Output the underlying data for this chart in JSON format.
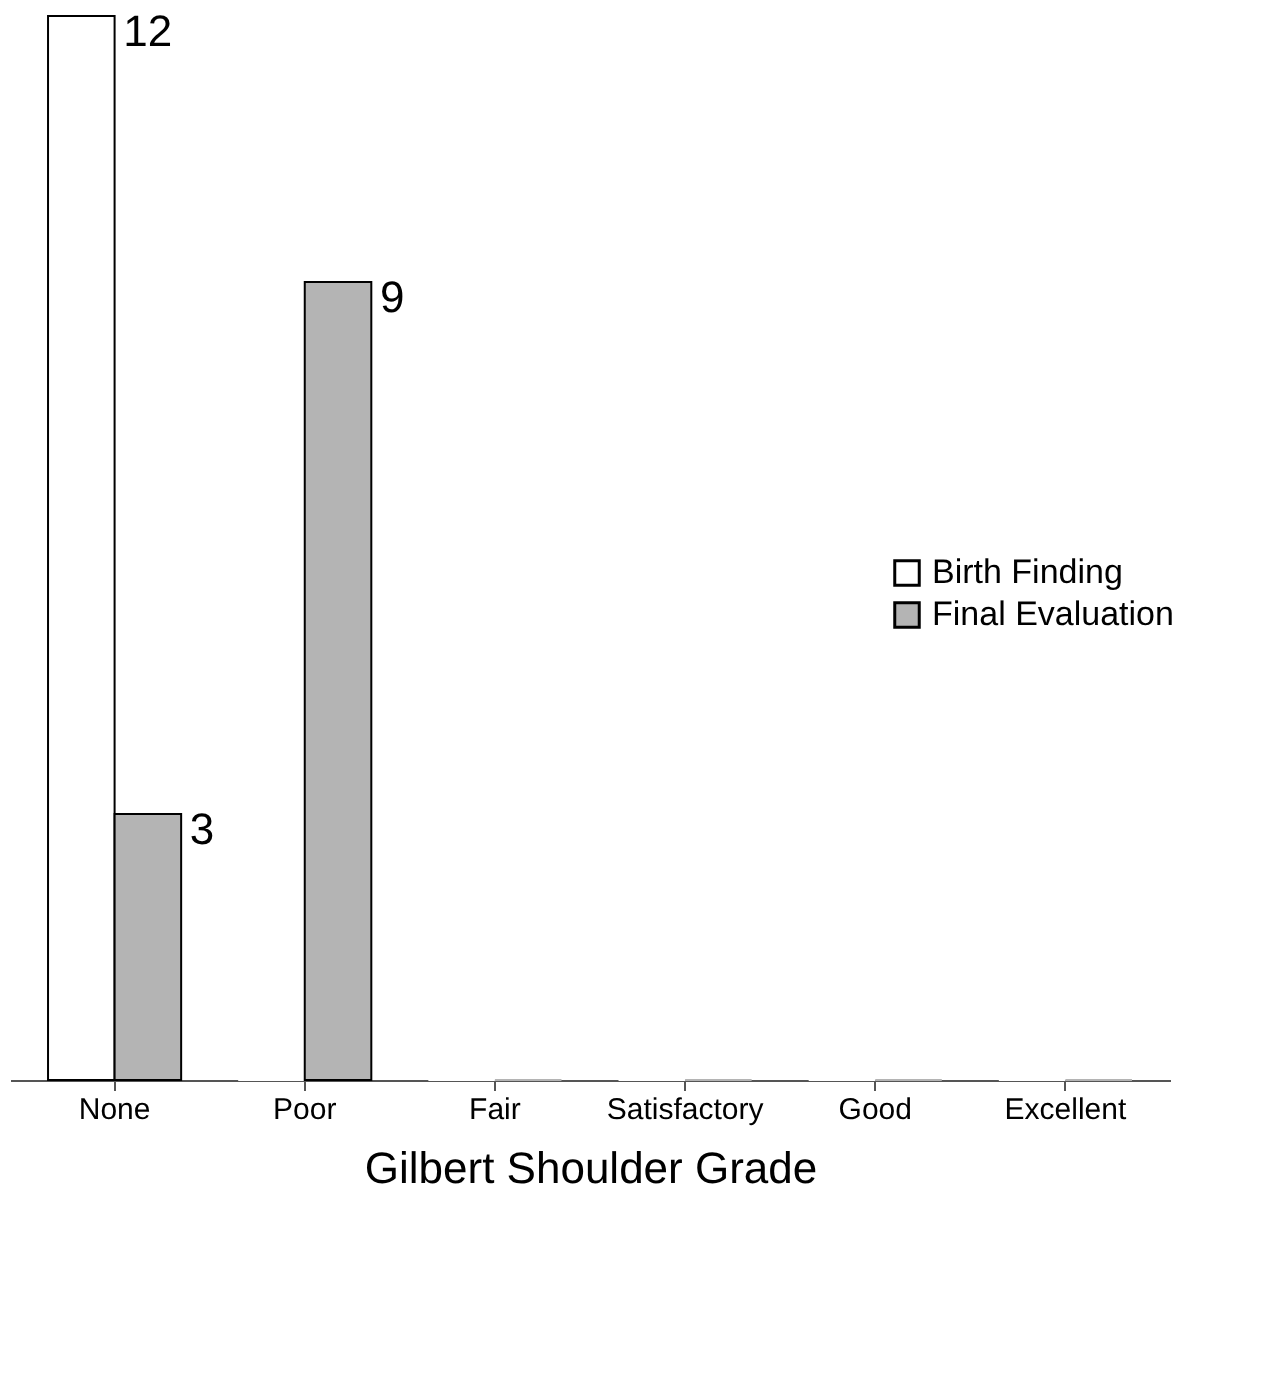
{
  "chart_data": {
    "type": "bar",
    "xlabel": "Gilbert Shoulder Grade",
    "categories": [
      "None",
      "Poor",
      "Fair",
      "Satisfactory",
      "Good",
      "Excellent"
    ],
    "series": [
      {
        "name": "Birth Finding",
        "color": "#ffffff",
        "values": [
          12,
          0,
          0,
          0,
          0,
          0
        ],
        "value_labels": [
          "12",
          null,
          null,
          null,
          null,
          null
        ]
      },
      {
        "name": "Final Evaluation",
        "color": "#b4b4b4",
        "values": [
          3,
          9,
          0,
          0,
          0,
          0
        ],
        "value_labels": [
          "3",
          "9",
          null,
          null,
          null,
          null
        ]
      }
    ],
    "tick_labels": "x",
    "grid": false,
    "legend": "right"
  }
}
